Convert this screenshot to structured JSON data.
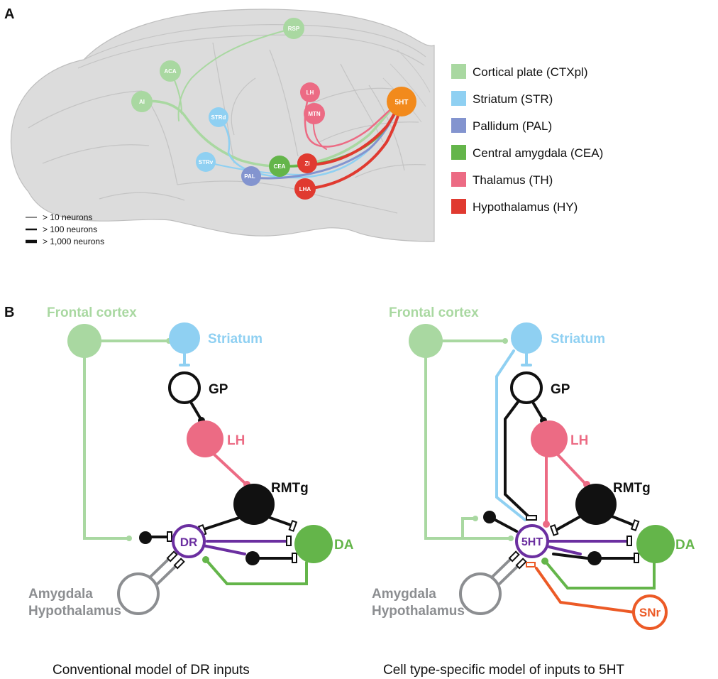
{
  "panel_a": {
    "letter": "A",
    "regions": {
      "rsp": "RSP",
      "aca": "ACA",
      "ai": "AI",
      "strd": "STRd",
      "strv": "STRv",
      "pal": "PAL",
      "cea": "CEA",
      "zi": "ZI",
      "lha": "LHA",
      "lh": "LH",
      "mtn": "MTN",
      "target": "5HT"
    },
    "legend": [
      {
        "label": "Cortical plate (CTXpl)",
        "color": "#a9d8a1"
      },
      {
        "label": "Striatum (STR)",
        "color": "#8fd0f2"
      },
      {
        "label": "Pallidum (PAL)",
        "color": "#8394cf"
      },
      {
        "label": "Central amygdala (CEA)",
        "color": "#64b54a"
      },
      {
        "label": "Thalamus (TH)",
        "color": "#ec6b84"
      },
      {
        "label": "Hypothalamus (HY)",
        "color": "#e03a30"
      }
    ],
    "scale": [
      "> 10 neurons",
      "> 100 neurons",
      "> 1,000 neurons"
    ]
  },
  "panel_b": {
    "letter": "B",
    "left": {
      "frontal": "Frontal cortex",
      "striatum": "Striatum",
      "gp": "GP",
      "lh": "LH",
      "rmtg": "RMTg",
      "center": "DR",
      "da": "DA",
      "amygdala": "Amygdala",
      "hypothalamus": "Hypothalamus",
      "caption": "Conventional model of DR inputs"
    },
    "right": {
      "frontal": "Frontal cortex",
      "striatum": "Striatum",
      "gp": "GP",
      "lh": "LH",
      "rmtg": "RMTg",
      "center": "5HT",
      "da": "DA",
      "amygdala": "Amygdala",
      "hypothalamus": "Hypothalamus",
      "snr": "SNr",
      "caption": "Cell type-specific model of inputs to 5HT"
    }
  },
  "colors": {
    "cortex": "#a9d8a1",
    "striatum": "#8fd0f2",
    "pallidum": "#8394cf",
    "amygdala": "#64b54a",
    "thalamus": "#ec6b84",
    "hypothalamus": "#e03a30",
    "serotonin": "#f28a1c",
    "dr": "#6b2fa0",
    "snr": "#ec5a26",
    "gray": "#8c8e91",
    "brain": "#dcdcdc"
  }
}
